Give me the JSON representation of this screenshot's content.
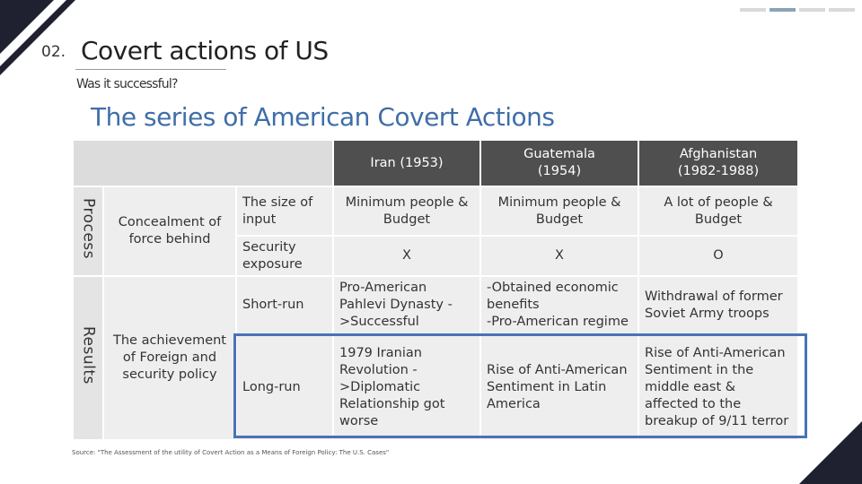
{
  "slide": {
    "number": "02.",
    "title": "Covert actions of US",
    "subtitle": "Was it successful?",
    "heading": "The series of American Covert Actions",
    "source": "Source: \"The Assessment of the utility of Covert Action as a Means of Foreign Policy: The U.S. Cases\""
  },
  "table": {
    "columns": [
      "Iran (1953)",
      "Guatemala\n(1954)",
      "Afghanistan\n(1982-1988)"
    ],
    "sections": {
      "process": "Process",
      "results": "Results"
    },
    "groups": {
      "concealment": "Concealment of force behind",
      "achievement": "The achievement of Foreign and security policy"
    },
    "rows": [
      {
        "label": "The size of input",
        "values": [
          "Minimum people & Budget",
          "Minimum people & Budget",
          "A lot of people & Budget"
        ]
      },
      {
        "label": "Security exposure",
        "values": [
          "X",
          "X",
          "O"
        ]
      },
      {
        "label": "Short-run",
        "values": [
          "Pro-American Pahlevi Dynasty ->Successful",
          "-Obtained economic benefits\n-Pro-American regime",
          "Withdrawal of former Soviet Army troops"
        ]
      },
      {
        "label": "Long-run",
        "values": [
          "1979 Iranian Revolution ->Diplomatic Relationship got worse",
          "Rise of Anti-American Sentiment in Latin America",
          "Rise of Anti-American Sentiment in the middle east & affected to the breakup of 9/11 terror"
        ]
      }
    ]
  },
  "colors": {
    "accent": "#3f6ea8",
    "highlight_border": "#4a72b5",
    "header_dark": "#4f4f4f",
    "cell_bg": "#eeeeee"
  }
}
